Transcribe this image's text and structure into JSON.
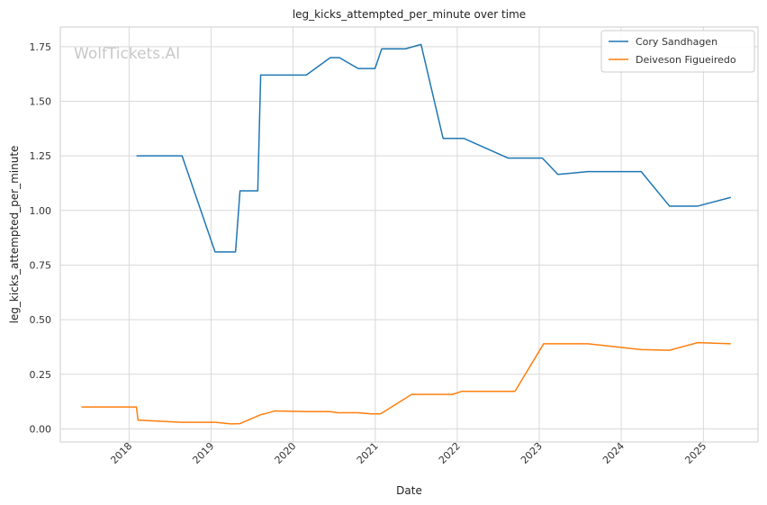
{
  "chart_data": {
    "type": "line",
    "title": "leg_kicks_attempted_per_minute over time",
    "xlabel": "Date",
    "ylabel": "leg_kicks_attempted_per_minute",
    "watermark": "WolfTickets.AI",
    "xlim": [
      "2017-03-01",
      "2025-09-01"
    ],
    "ylim": [
      -0.06,
      1.84
    ],
    "x_ticks": [
      {
        "date": "2018-01-01",
        "label": "2018"
      },
      {
        "date": "2019-01-01",
        "label": "2019"
      },
      {
        "date": "2020-01-01",
        "label": "2020"
      },
      {
        "date": "2021-01-01",
        "label": "2021"
      },
      {
        "date": "2022-01-01",
        "label": "2022"
      },
      {
        "date": "2023-01-01",
        "label": "2023"
      },
      {
        "date": "2024-01-01",
        "label": "2024"
      },
      {
        "date": "2025-01-01",
        "label": "2025"
      }
    ],
    "y_ticks": [
      {
        "value": 0.0,
        "label": "0.00"
      },
      {
        "value": 0.25,
        "label": "0.25"
      },
      {
        "value": 0.5,
        "label": "0.50"
      },
      {
        "value": 0.75,
        "label": "0.75"
      },
      {
        "value": 1.0,
        "label": "1.00"
      },
      {
        "value": 1.25,
        "label": "1.25"
      },
      {
        "value": 1.5,
        "label": "1.50"
      },
      {
        "value": 1.75,
        "label": "1.75"
      }
    ],
    "grid": true,
    "legend_position": "top-right",
    "series": [
      {
        "name": "Cory Sandhagen",
        "color": "#1f77b4",
        "points": [
          [
            "2018-02-03",
            1.25
          ],
          [
            "2018-08-25",
            1.25
          ],
          [
            "2019-01-19",
            0.81
          ],
          [
            "2019-04-20",
            0.81
          ],
          [
            "2019-05-10",
            1.09
          ],
          [
            "2019-07-28",
            1.09
          ],
          [
            "2019-08-10",
            1.62
          ],
          [
            "2020-02-29",
            1.62
          ],
          [
            "2020-06-15",
            1.7
          ],
          [
            "2020-07-25",
            1.7
          ],
          [
            "2020-10-17",
            1.65
          ],
          [
            "2020-12-31",
            1.65
          ],
          [
            "2021-01-30",
            1.74
          ],
          [
            "2021-05-15",
            1.74
          ],
          [
            "2021-07-24",
            1.76
          ],
          [
            "2021-10-30",
            1.33
          ],
          [
            "2022-01-30",
            1.33
          ],
          [
            "2022-08-15",
            1.24
          ],
          [
            "2023-01-15",
            1.24
          ],
          [
            "2023-03-25",
            1.165
          ],
          [
            "2023-08-05",
            1.178
          ],
          [
            "2024-03-30",
            1.178
          ],
          [
            "2024-08-03",
            1.02
          ],
          [
            "2024-12-07",
            1.02
          ],
          [
            "2025-05-03",
            1.06
          ]
        ]
      },
      {
        "name": "Deiveson Figueiredo",
        "color": "#ff7f0e",
        "points": [
          [
            "2017-06-03",
            0.1
          ],
          [
            "2018-02-03",
            0.1
          ],
          [
            "2018-02-10",
            0.04
          ],
          [
            "2018-08-25",
            0.03
          ],
          [
            "2019-01-20",
            0.03
          ],
          [
            "2019-03-30",
            0.023
          ],
          [
            "2019-05-10",
            0.024
          ],
          [
            "2019-08-10",
            0.065
          ],
          [
            "2019-08-31",
            0.07
          ],
          [
            "2019-10-12",
            0.082
          ],
          [
            "2020-02-29",
            0.079
          ],
          [
            "2020-06-15",
            0.079
          ],
          [
            "2020-07-18",
            0.074
          ],
          [
            "2020-10-17",
            0.074
          ],
          [
            "2020-12-12",
            0.069
          ],
          [
            "2021-01-25",
            0.069
          ],
          [
            "2021-06-12",
            0.158
          ],
          [
            "2021-12-11",
            0.158
          ],
          [
            "2022-01-22",
            0.172
          ],
          [
            "2022-09-15",
            0.172
          ],
          [
            "2023-01-21",
            0.39
          ],
          [
            "2023-08-05",
            0.39
          ],
          [
            "2024-03-30",
            0.363
          ],
          [
            "2024-08-03",
            0.36
          ],
          [
            "2024-12-07",
            0.395
          ],
          [
            "2025-05-03",
            0.39
          ]
        ]
      }
    ]
  }
}
